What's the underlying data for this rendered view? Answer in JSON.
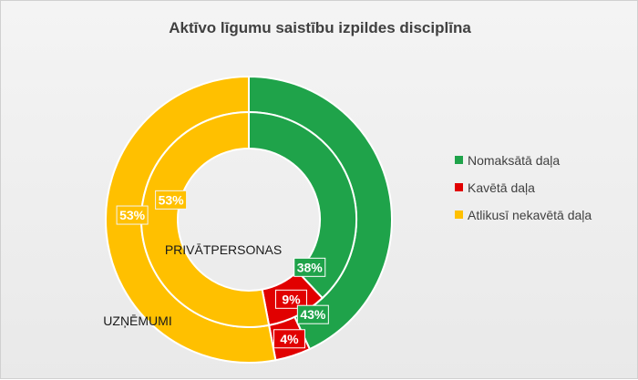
{
  "chart_data": {
    "type": "donut",
    "title": "Aktīvo līgumu saistību izpildes disciplīna",
    "categories": [
      "Nomaksātā daļa",
      "Kavētā daļa",
      "Atlikusī nekavētā daļa"
    ],
    "colors": [
      "#1fa34a",
      "#e10000",
      "#ffc000"
    ],
    "legend_position": "right",
    "rings": [
      {
        "name": "PRIVĀTPERSONAS",
        "values": [
          38,
          9,
          53
        ],
        "labels": [
          "38%",
          "9%",
          "53%"
        ]
      },
      {
        "name": "UZŅĒMUMI",
        "values": [
          43,
          4,
          53
        ],
        "labels": [
          "43%",
          "4%",
          "53%"
        ]
      }
    ]
  }
}
